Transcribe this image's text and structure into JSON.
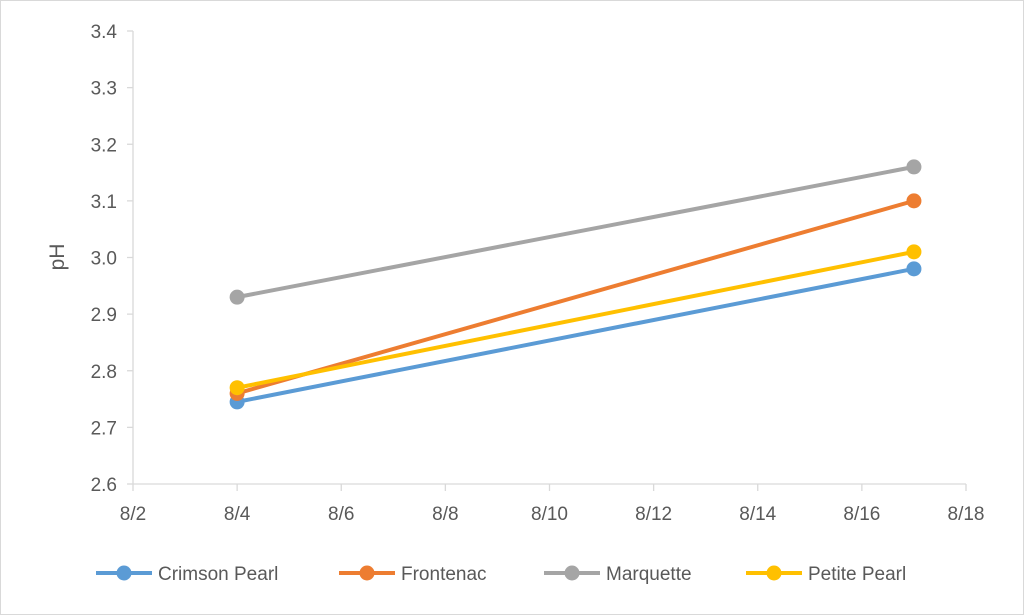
{
  "chart_data": {
    "type": "line",
    "title": "",
    "xlabel": "",
    "ylabel": "pH",
    "x_ticks": [
      "8/2",
      "8/4",
      "8/6",
      "8/8",
      "8/10",
      "8/12",
      "8/14",
      "8/16",
      "8/18"
    ],
    "y_ticks": [
      "2.6",
      "2.7",
      "2.8",
      "2.9",
      "3.0",
      "3.1",
      "3.2",
      "3.3",
      "3.4"
    ],
    "xlim": [
      "8/2",
      "8/18"
    ],
    "ylim": [
      2.6,
      3.4
    ],
    "grid": false,
    "legend_position": "bottom",
    "series": [
      {
        "name": "Crimson Pearl",
        "color": "#5B9BD5",
        "x": [
          "8/4",
          "8/17"
        ],
        "values": [
          2.745,
          2.98
        ]
      },
      {
        "name": "Frontenac",
        "color": "#ED7D31",
        "x": [
          "8/4",
          "8/17"
        ],
        "values": [
          2.76,
          3.1
        ]
      },
      {
        "name": "Marquette",
        "color": "#A5A5A5",
        "x": [
          "8/4",
          "8/17"
        ],
        "values": [
          2.93,
          3.16
        ]
      },
      {
        "name": "Petite Pearl",
        "color": "#FFC000",
        "x": [
          "8/4",
          "8/17"
        ],
        "values": [
          2.77,
          3.01
        ]
      }
    ]
  }
}
